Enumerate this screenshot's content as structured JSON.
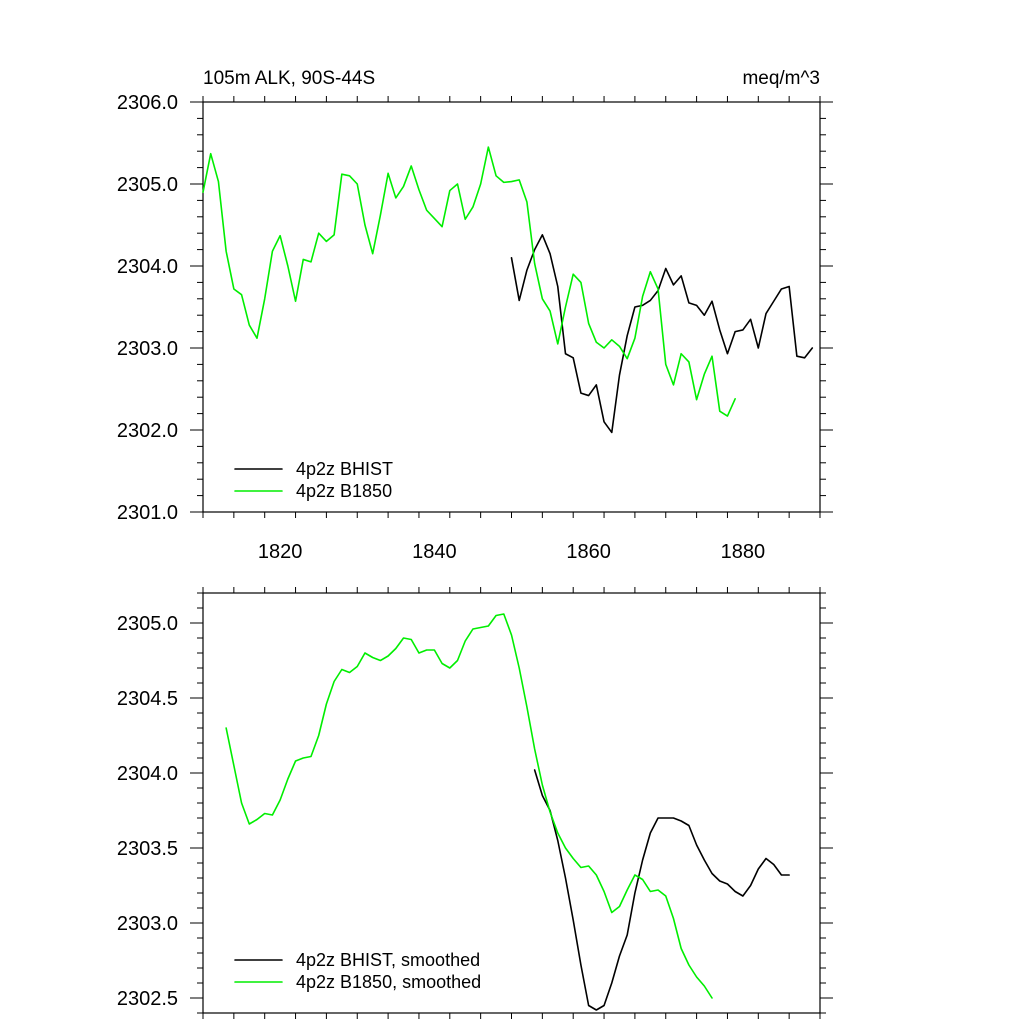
{
  "colors": {
    "BHIST": "#000000",
    "B1850": "#00ee00"
  },
  "chart_data": [
    {
      "type": "line",
      "title": "105m ALK, 90S-44S",
      "units": "meq/m^3",
      "xlim": [
        1810,
        1890
      ],
      "ylim": [
        2301.0,
        2306.0
      ],
      "x_major_ticks": [
        1820,
        1840,
        1860,
        1880
      ],
      "x_tick_labels": [
        "1820",
        "1840",
        "1860",
        "1880"
      ],
      "y_major_ticks": [
        2301,
        2302,
        2303,
        2304,
        2305,
        2306
      ],
      "y_tick_labels": [
        "2301.0",
        "2302.0",
        "2303.0",
        "2304.0",
        "2305.0",
        "2306.0"
      ],
      "legend": {
        "location": "bottom-left"
      },
      "series": [
        {
          "name": "4p2z BHIST",
          "color": "#000000",
          "x_start": 1850,
          "values": [
            2304.1,
            2303.58,
            2303.95,
            2304.2,
            2304.38,
            2304.15,
            2303.75,
            2302.93,
            2302.88,
            2302.45,
            2302.42,
            2302.55,
            2302.1,
            2301.97,
            2302.67,
            2303.15,
            2303.5,
            2303.52,
            2303.58,
            2303.7,
            2303.97,
            2303.77,
            2303.88,
            2303.55,
            2303.52,
            2303.4,
            2303.57,
            2303.22,
            2302.93,
            2303.2,
            2303.22,
            2303.35,
            2303.0,
            2303.42,
            2303.57,
            2303.72,
            2303.75,
            2302.9,
            2302.88,
            2303.0
          ]
        },
        {
          "name": "4p2z B1850",
          "color": "#00ee00",
          "x_start": 1810,
          "values": [
            2304.9,
            2305.37,
            2305.03,
            2304.18,
            2303.72,
            2303.65,
            2303.28,
            2303.12,
            2303.6,
            2304.18,
            2304.37,
            2304.0,
            2303.57,
            2304.08,
            2304.05,
            2304.4,
            2304.3,
            2304.38,
            2305.12,
            2305.1,
            2305.0,
            2304.5,
            2304.15,
            2304.62,
            2305.13,
            2304.83,
            2304.97,
            2305.22,
            2304.93,
            2304.68,
            2304.58,
            2304.48,
            2304.92,
            2305.0,
            2304.57,
            2304.72,
            2305.0,
            2305.45,
            2305.1,
            2305.02,
            2305.03,
            2305.05,
            2304.78,
            2304.03,
            2303.6,
            2303.45,
            2303.05,
            2303.5,
            2303.9,
            2303.8,
            2303.3,
            2303.07,
            2303.0,
            2303.1,
            2303.02,
            2302.87,
            2303.12,
            2303.63,
            2303.93,
            2303.72,
            2302.8,
            2302.55,
            2302.93,
            2302.83,
            2302.37,
            2302.68,
            2302.9,
            2302.23,
            2302.17,
            2302.38
          ]
        }
      ]
    },
    {
      "type": "line",
      "title": "",
      "xlim": [
        1810,
        1890
      ],
      "ylim": [
        2302.4,
        2305.2
      ],
      "x_major_ticks": [
        1820,
        1840,
        1860,
        1880
      ],
      "x_tick_labels": [],
      "y_major_ticks": [
        2302.5,
        2303.0,
        2303.5,
        2304.0,
        2304.5,
        2305.0
      ],
      "y_tick_labels": [
        "2302.5",
        "2303.0",
        "2303.5",
        "2304.0",
        "2304.5",
        "2305.0"
      ],
      "legend": {
        "location": "bottom-left"
      },
      "series": [
        {
          "name": "4p2z BHIST, smoothed",
          "color": "#000000",
          "x_start": 1853,
          "values": [
            2304.02,
            2303.85,
            2303.75,
            2303.55,
            2303.3,
            2303.02,
            2302.72,
            2302.45,
            2302.42,
            2302.45,
            2302.6,
            2302.78,
            2302.92,
            2303.2,
            2303.42,
            2303.6,
            2303.7,
            2303.7,
            2303.7,
            2303.68,
            2303.65,
            2303.52,
            2303.42,
            2303.33,
            2303.28,
            2303.26,
            2303.21,
            2303.18,
            2303.25,
            2303.36,
            2303.43,
            2303.39,
            2303.32,
            2303.32
          ]
        },
        {
          "name": "4p2z B1850, smoothed",
          "color": "#00ee00",
          "x_start": 1813,
          "values": [
            2304.3,
            2304.05,
            2303.8,
            2303.66,
            2303.69,
            2303.73,
            2303.72,
            2303.82,
            2303.96,
            2304.08,
            2304.1,
            2304.11,
            2304.25,
            2304.46,
            2304.61,
            2304.69,
            2304.67,
            2304.71,
            2304.8,
            2304.77,
            2304.75,
            2304.78,
            2304.83,
            2304.9,
            2304.89,
            2304.8,
            2304.82,
            2304.82,
            2304.73,
            2304.7,
            2304.75,
            2304.88,
            2304.96,
            2304.97,
            2304.98,
            2305.05,
            2305.06,
            2304.92,
            2304.7,
            2304.44,
            2304.16,
            2303.92,
            2303.74,
            2303.6,
            2303.5,
            2303.43,
            2303.37,
            2303.38,
            2303.32,
            2303.21,
            2303.07,
            2303.11,
            2303.22,
            2303.32,
            2303.29,
            2303.21,
            2303.22,
            2303.18,
            2303.03,
            2302.83,
            2302.72,
            2302.64,
            2302.58,
            2302.5
          ]
        }
      ]
    }
  ]
}
